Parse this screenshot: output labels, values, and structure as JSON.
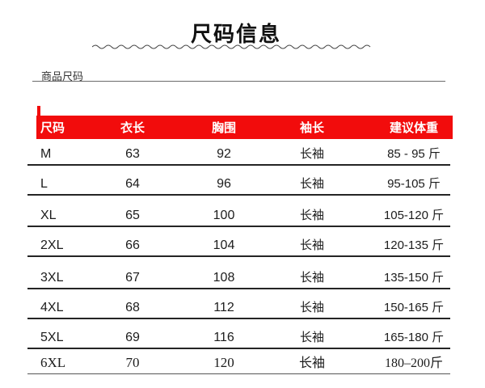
{
  "page": {
    "title": "尺码信息",
    "section_label": "商品尺码"
  },
  "table": {
    "header_bg": "#f20c0c",
    "header_text_color": "#ffffff",
    "headers": [
      "尺码",
      "衣长",
      "胸围",
      "袖长",
      "建议体重"
    ],
    "rows": [
      {
        "size": "M",
        "length": "63",
        "chest": "92",
        "sleeve": "长袖",
        "weight": "85 - 95 斤"
      },
      {
        "size": "L",
        "length": "64",
        "chest": "96",
        "sleeve": "长袖",
        "weight": "95-105 斤"
      },
      {
        "size": "XL",
        "length": "65",
        "chest": "100",
        "sleeve": "长袖",
        "weight": "105-120 斤"
      },
      {
        "size": "2XL",
        "length": "66",
        "chest": "104",
        "sleeve": "长袖",
        "weight": "120-135 斤"
      },
      {
        "size": "3XL",
        "length": "67",
        "chest": "108",
        "sleeve": "长袖",
        "weight": "135-150 斤"
      },
      {
        "size": "4XL",
        "length": "68",
        "chest": "112",
        "sleeve": "长袖",
        "weight": "150-165 斤"
      },
      {
        "size": "5XL",
        "length": "69",
        "chest": "116",
        "sleeve": "长袖",
        "weight": "165-180 斤"
      },
      {
        "size": "6XL",
        "length": "70",
        "chest": "120",
        "sleeve": "长袖",
        "weight": "180–200斤"
      }
    ]
  }
}
